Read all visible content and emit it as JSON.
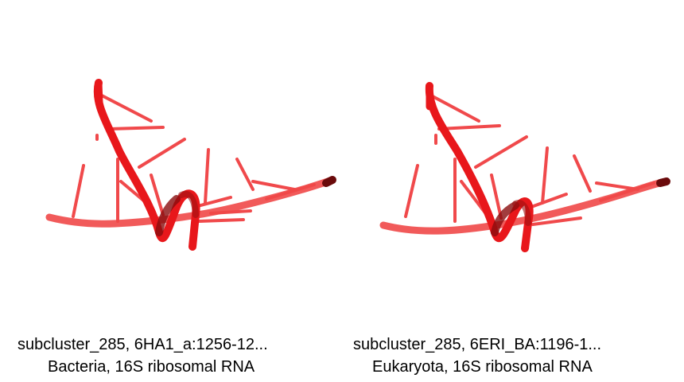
{
  "colors": {
    "background": "#ffffff",
    "backbone": "#e8171b",
    "backbone_dark": "#8a0c0e",
    "bases": "#ee2a2c"
  },
  "panels": [
    {
      "line1": "subcluster_285, 6HA1_a:1256-12...",
      "line2": "Bacteria, 16S ribosomal RNA"
    },
    {
      "line1": "subcluster_285, 6ERI_BA:1196-1...",
      "line2": "Eukaryota, 16S ribosomal RNA"
    }
  ]
}
